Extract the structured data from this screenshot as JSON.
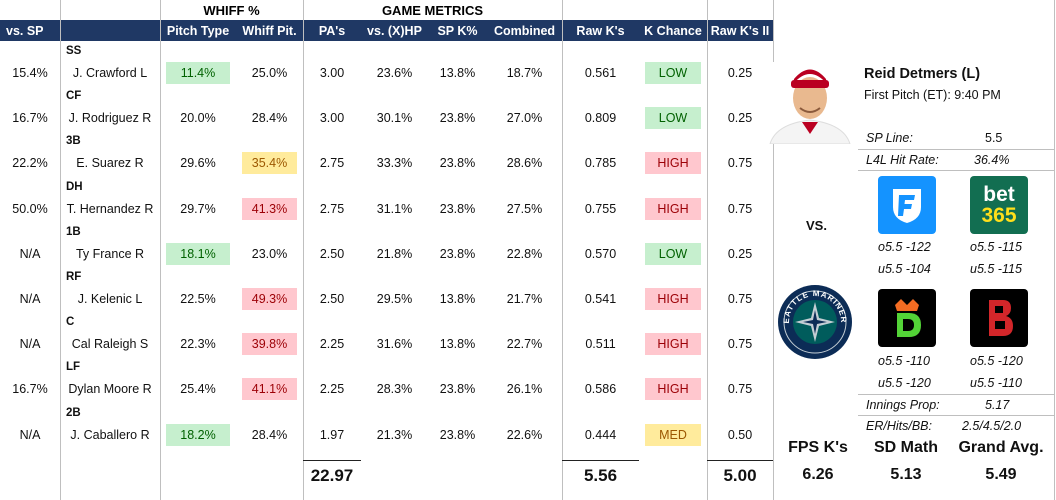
{
  "headers": {
    "whiff_group": "WHIFF %",
    "game_group": "GAME METRICS",
    "vs_sp": "vs. SP",
    "pitch_type": "Pitch Type",
    "whiff_pit": "Whiff Pit.",
    "pas": "PA's",
    "vs_xhp": "vs. (X)HP",
    "sp_k": "SP K%",
    "combined": "Combined",
    "raw_k": "Raw K's",
    "k_chance": "K Chance",
    "raw_k2": "Raw K's II"
  },
  "rows": [
    {
      "pos": "SS",
      "vs_sp": "15.4%",
      "batter": "J. Crawford L",
      "pitch_type": "11.4%",
      "pt_color": "green",
      "whiff": "25.0%",
      "wh_color": "",
      "pas": "3.00",
      "vs_xhp": "23.6%",
      "sp_k": "13.8%",
      "combined": "18.7%",
      "raw_k": "0.561",
      "k_chance": "LOW",
      "kc_color": "green",
      "raw_k2": "0.25"
    },
    {
      "pos": "CF",
      "vs_sp": "16.7%",
      "batter": "J. Rodriguez R",
      "pitch_type": "20.0%",
      "pt_color": "",
      "whiff": "28.4%",
      "wh_color": "",
      "pas": "3.00",
      "vs_xhp": "30.1%",
      "sp_k": "23.8%",
      "combined": "27.0%",
      "raw_k": "0.809",
      "k_chance": "LOW",
      "kc_color": "green",
      "raw_k2": "0.25"
    },
    {
      "pos": "3B",
      "vs_sp": "22.2%",
      "batter": "E. Suarez R",
      "pitch_type": "29.6%",
      "pt_color": "",
      "whiff": "35.4%",
      "wh_color": "yellow",
      "pas": "2.75",
      "vs_xhp": "33.3%",
      "sp_k": "23.8%",
      "combined": "28.6%",
      "raw_k": "0.785",
      "k_chance": "HIGH",
      "kc_color": "red",
      "raw_k2": "0.75"
    },
    {
      "pos": "DH",
      "vs_sp": "50.0%",
      "batter": "T. Hernandez R",
      "pitch_type": "29.7%",
      "pt_color": "",
      "whiff": "41.3%",
      "wh_color": "red",
      "pas": "2.75",
      "vs_xhp": "31.1%",
      "sp_k": "23.8%",
      "combined": "27.5%",
      "raw_k": "0.755",
      "k_chance": "HIGH",
      "kc_color": "red",
      "raw_k2": "0.75"
    },
    {
      "pos": "1B",
      "vs_sp": "N/A",
      "batter": "Ty France R",
      "pitch_type": "18.1%",
      "pt_color": "green",
      "whiff": "23.0%",
      "wh_color": "",
      "pas": "2.50",
      "vs_xhp": "21.8%",
      "sp_k": "23.8%",
      "combined": "22.8%",
      "raw_k": "0.570",
      "k_chance": "LOW",
      "kc_color": "green",
      "raw_k2": "0.25"
    },
    {
      "pos": "RF",
      "vs_sp": "N/A",
      "batter": "J. Kelenic L",
      "pitch_type": "22.5%",
      "pt_color": "",
      "whiff": "49.3%",
      "wh_color": "red",
      "pas": "2.50",
      "vs_xhp": "29.5%",
      "sp_k": "13.8%",
      "combined": "21.7%",
      "raw_k": "0.541",
      "k_chance": "HIGH",
      "kc_color": "red",
      "raw_k2": "0.75"
    },
    {
      "pos": "C",
      "vs_sp": "N/A",
      "batter": "Cal Raleigh S",
      "pitch_type": "22.3%",
      "pt_color": "",
      "whiff": "39.8%",
      "wh_color": "red",
      "pas": "2.25",
      "vs_xhp": "31.6%",
      "sp_k": "13.8%",
      "combined": "22.7%",
      "raw_k": "0.511",
      "k_chance": "HIGH",
      "kc_color": "red",
      "raw_k2": "0.75"
    },
    {
      "pos": "LF",
      "vs_sp": "16.7%",
      "batter": "Dylan Moore R",
      "pitch_type": "25.4%",
      "pt_color": "",
      "whiff": "41.1%",
      "wh_color": "red",
      "pas": "2.25",
      "vs_xhp": "28.3%",
      "sp_k": "23.8%",
      "combined": "26.1%",
      "raw_k": "0.586",
      "k_chance": "HIGH",
      "kc_color": "red",
      "raw_k2": "0.75"
    },
    {
      "pos": "2B",
      "vs_sp": "N/A",
      "batter": "J. Caballero R",
      "pitch_type": "18.2%",
      "pt_color": "green",
      "whiff": "28.4%",
      "wh_color": "",
      "pas": "1.97",
      "vs_xhp": "21.3%",
      "sp_k": "23.8%",
      "combined": "22.6%",
      "raw_k": "0.444",
      "k_chance": "MED",
      "kc_color": "yellow",
      "raw_k2": "0.50"
    }
  ],
  "totals": {
    "pas": "22.97",
    "raw_k": "5.56",
    "raw_k2": "5.00"
  },
  "pitcher": {
    "name": "Reid Detmers (L)",
    "first_pitch": "First Pitch (ET): 9:40 PM",
    "sp_line_label": "SP Line:",
    "sp_line": "5.5",
    "l4l_label": "L4L Hit Rate:",
    "l4l": "36.4%",
    "vs": "VS.",
    "fanduel_over": "o5.5 -122",
    "fanduel_under": "u5.5 -104",
    "bet365_over": "o5.5 -115",
    "bet365_under": "u5.5 -115",
    "draftkings_over": "o5.5 -110",
    "draftkings_under": "u5.5 -120",
    "barstool_over": "o5.5 -120",
    "barstool_under": "u5.5 -110",
    "innings_label": "Innings Prop:",
    "innings": "5.17",
    "er_label": "ER/Hits/BB:",
    "er": "2.5/4.5/2.0",
    "bet365_text": "bet",
    "bet365_num": "365",
    "seattle_logo_text": "SEATTLE MARINERS"
  },
  "summary": {
    "fps_label": "FPS K's",
    "fps": "6.26",
    "sd_label": "SD Math",
    "sd": "5.13",
    "grand_label": "Grand Avg.",
    "grand": "5.49"
  },
  "colors": {
    "navy": "#1f3864",
    "green_bg": "#c6efce",
    "red_bg": "#ffc7ce",
    "yellow_bg": "#ffeb9c",
    "fanduel": "#1493ff",
    "bet365": "#126e51",
    "bet365_accent": "#ffdf1b",
    "barstool": "#d3262a",
    "draftkings": "#f46c22",
    "angels_red": "#ba0021",
    "mariners_navy": "#0c2c56",
    "mariners_teal": "#005c5c"
  }
}
